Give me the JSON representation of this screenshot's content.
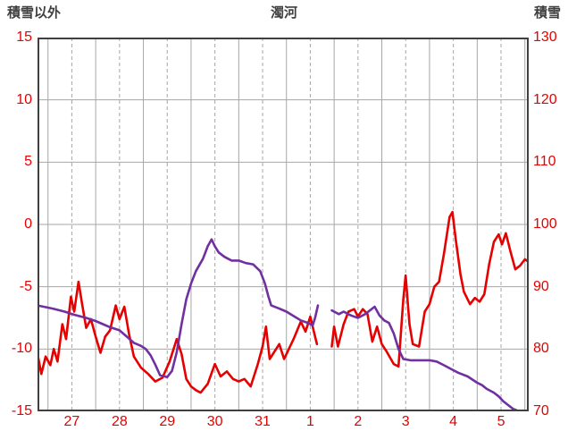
{
  "header": {
    "left_label": "積雪以外",
    "title": "濁河",
    "right_label": "積雪"
  },
  "colors": {
    "frame": "#404040",
    "grid": "#a6a6a6",
    "tick_text": "#e60000",
    "header_text": "#3f3f3f",
    "red_series": "#e60000",
    "purple_series": "#7030a0"
  },
  "chart_data": {
    "type": "line",
    "title": "濁河",
    "grid": "on",
    "legend": "none",
    "left_axis": {
      "label": "積雪以外",
      "min": -15,
      "max": 15,
      "ticks": [
        15,
        10,
        5,
        0,
        -5,
        -10,
        -15
      ]
    },
    "right_axis": {
      "label": "積雪",
      "min": 70,
      "max": 130,
      "ticks": [
        130,
        120,
        110,
        100,
        90,
        80,
        70
      ]
    },
    "x_axis": {
      "labels": [
        "27",
        "28",
        "29",
        "30",
        "31",
        "1",
        "2",
        "3",
        "4",
        "5"
      ],
      "domain": [
        -0.22,
        10.08
      ],
      "day_count": 10
    },
    "series": [
      {
        "name": "red-line",
        "axis": "left",
        "color": "#e60000",
        "width": 2.6,
        "segments": [
          [
            [
              -0.22,
              -10.4
            ],
            [
              -0.14,
              -12.0
            ],
            [
              -0.05,
              -10.6
            ],
            [
              0.05,
              -11.3
            ],
            [
              0.12,
              -10.0
            ],
            [
              0.2,
              -11.0
            ],
            [
              0.3,
              -8.0
            ],
            [
              0.38,
              -9.2
            ],
            [
              0.48,
              -5.8
            ],
            [
              0.55,
              -7.0
            ],
            [
              0.64,
              -4.6
            ],
            [
              0.72,
              -6.5
            ],
            [
              0.8,
              -8.3
            ],
            [
              0.9,
              -7.6
            ],
            [
              1.0,
              -9.0
            ],
            [
              1.1,
              -10.3
            ],
            [
              1.2,
              -9.0
            ],
            [
              1.3,
              -8.5
            ],
            [
              1.42,
              -6.5
            ],
            [
              1.5,
              -7.6
            ],
            [
              1.6,
              -6.6
            ],
            [
              1.7,
              -8.8
            ],
            [
              1.8,
              -10.6
            ],
            [
              1.95,
              -11.5
            ],
            [
              2.1,
              -12.0
            ],
            [
              2.25,
              -12.6
            ],
            [
              2.4,
              -12.3
            ],
            [
              2.55,
              -11.0
            ],
            [
              2.7,
              -9.2
            ],
            [
              2.8,
              -10.4
            ],
            [
              2.9,
              -12.4
            ],
            [
              3.0,
              -13.0
            ],
            [
              3.1,
              -13.3
            ],
            [
              3.2,
              -13.5
            ],
            [
              3.35,
              -12.8
            ],
            [
              3.5,
              -11.2
            ],
            [
              3.62,
              -12.2
            ],
            [
              3.75,
              -11.8
            ],
            [
              3.88,
              -12.4
            ],
            [
              4.0,
              -12.6
            ],
            [
              4.12,
              -12.4
            ],
            [
              4.25,
              -13.0
            ],
            [
              4.4,
              -11.2
            ],
            [
              4.5,
              -9.8
            ],
            [
              4.57,
              -8.2
            ],
            [
              4.65,
              -10.8
            ],
            [
              4.75,
              -10.2
            ],
            [
              4.85,
              -9.6
            ],
            [
              4.95,
              -10.8
            ],
            [
              5.05,
              -10.0
            ],
            [
              5.15,
              -9.2
            ],
            [
              5.3,
              -7.8
            ],
            [
              5.4,
              -8.6
            ],
            [
              5.5,
              -7.4
            ],
            [
              5.6,
              -9.0
            ],
            [
              5.64,
              -9.6
            ]
          ],
          [
            [
              5.95,
              -9.8
            ],
            [
              6.0,
              -8.2
            ],
            [
              6.08,
              -9.8
            ],
            [
              6.2,
              -8.0
            ],
            [
              6.3,
              -7.0
            ],
            [
              6.42,
              -6.8
            ],
            [
              6.5,
              -7.4
            ],
            [
              6.6,
              -6.8
            ],
            [
              6.7,
              -7.2
            ],
            [
              6.8,
              -9.4
            ],
            [
              6.9,
              -8.2
            ],
            [
              7.0,
              -9.6
            ],
            [
              7.1,
              -10.2
            ],
            [
              7.25,
              -11.2
            ],
            [
              7.35,
              -11.4
            ],
            [
              7.45,
              -6.0
            ],
            [
              7.5,
              -4.1
            ],
            [
              7.58,
              -8.0
            ],
            [
              7.65,
              -9.6
            ],
            [
              7.78,
              -9.8
            ],
            [
              7.9,
              -7.0
            ],
            [
              8.0,
              -6.4
            ],
            [
              8.1,
              -5.0
            ],
            [
              8.2,
              -4.6
            ],
            [
              8.3,
              -2.4
            ],
            [
              8.42,
              0.6
            ],
            [
              8.48,
              1.0
            ],
            [
              8.55,
              -1.2
            ],
            [
              8.65,
              -4.0
            ],
            [
              8.72,
              -5.4
            ],
            [
              8.85,
              -6.4
            ],
            [
              8.95,
              -5.9
            ],
            [
              9.05,
              -6.2
            ],
            [
              9.15,
              -5.6
            ],
            [
              9.25,
              -3.2
            ],
            [
              9.35,
              -1.4
            ],
            [
              9.45,
              -0.8
            ],
            [
              9.52,
              -1.6
            ],
            [
              9.6,
              -0.7
            ],
            [
              9.7,
              -2.2
            ],
            [
              9.8,
              -3.6
            ],
            [
              9.9,
              -3.3
            ],
            [
              10.0,
              -2.8
            ],
            [
              10.08,
              -3.0
            ]
          ]
        ]
      },
      {
        "name": "purple-line",
        "axis": "right",
        "color": "#7030a0",
        "width": 2.6,
        "segments": [
          [
            [
              -0.22,
              87
            ],
            [
              0.1,
              86.5
            ],
            [
              0.35,
              86
            ],
            [
              0.55,
              85.5
            ],
            [
              0.8,
              85
            ],
            [
              1.0,
              84.5
            ],
            [
              1.15,
              84
            ],
            [
              1.3,
              83.5
            ],
            [
              1.5,
              83
            ],
            [
              1.65,
              82
            ],
            [
              1.8,
              81
            ],
            [
              1.95,
              80.5
            ],
            [
              2.05,
              80
            ],
            [
              2.15,
              79
            ],
            [
              2.25,
              77.5
            ],
            [
              2.35,
              75.8
            ],
            [
              2.5,
              75.5
            ],
            [
              2.6,
              76.5
            ],
            [
              2.7,
              79.5
            ],
            [
              2.8,
              84
            ],
            [
              2.9,
              88
            ],
            [
              3.0,
              90.5
            ],
            [
              3.1,
              92.5
            ],
            [
              3.25,
              94.5
            ],
            [
              3.35,
              96.5
            ],
            [
              3.43,
              97.6
            ],
            [
              3.5,
              96.5
            ],
            [
              3.58,
              95.5
            ],
            [
              3.7,
              94.8
            ],
            [
              3.85,
              94.2
            ],
            [
              4.0,
              94.2
            ],
            [
              4.15,
              93.8
            ],
            [
              4.3,
              93.6
            ],
            [
              4.45,
              92.5
            ],
            [
              4.55,
              90.5
            ],
            [
              4.62,
              88.5
            ],
            [
              4.68,
              87
            ],
            [
              4.85,
              86.5
            ],
            [
              5.0,
              86
            ],
            [
              5.15,
              85.3
            ],
            [
              5.3,
              84.6
            ],
            [
              5.45,
              84.2
            ],
            [
              5.55,
              83.8
            ],
            [
              5.6,
              85
            ],
            [
              5.66,
              87
            ]
          ],
          [
            [
              5.95,
              86.2
            ],
            [
              6.1,
              85.6
            ],
            [
              6.2,
              86
            ],
            [
              6.35,
              85.4
            ],
            [
              6.5,
              85
            ],
            [
              6.65,
              85.6
            ],
            [
              6.85,
              86.8
            ],
            [
              6.95,
              85.4
            ],
            [
              7.05,
              84.6
            ],
            [
              7.15,
              84.2
            ],
            [
              7.25,
              82.5
            ],
            [
              7.35,
              80
            ],
            [
              7.45,
              78.4
            ],
            [
              7.6,
              78.2
            ],
            [
              7.8,
              78.2
            ],
            [
              8.0,
              78.2
            ],
            [
              8.15,
              78
            ],
            [
              8.3,
              77.4
            ],
            [
              8.45,
              76.8
            ],
            [
              8.6,
              76.2
            ],
            [
              8.8,
              75.6
            ],
            [
              9.0,
              74.6
            ],
            [
              9.1,
              74.2
            ],
            [
              9.2,
              73.6
            ],
            [
              9.35,
              73
            ],
            [
              9.45,
              72.4
            ],
            [
              9.55,
              71.6
            ],
            [
              9.65,
              71
            ],
            [
              9.75,
              70.4
            ],
            [
              9.85,
              70.1
            ],
            [
              10.0,
              70.0
            ],
            [
              10.08,
              70.0
            ]
          ]
        ]
      }
    ]
  }
}
